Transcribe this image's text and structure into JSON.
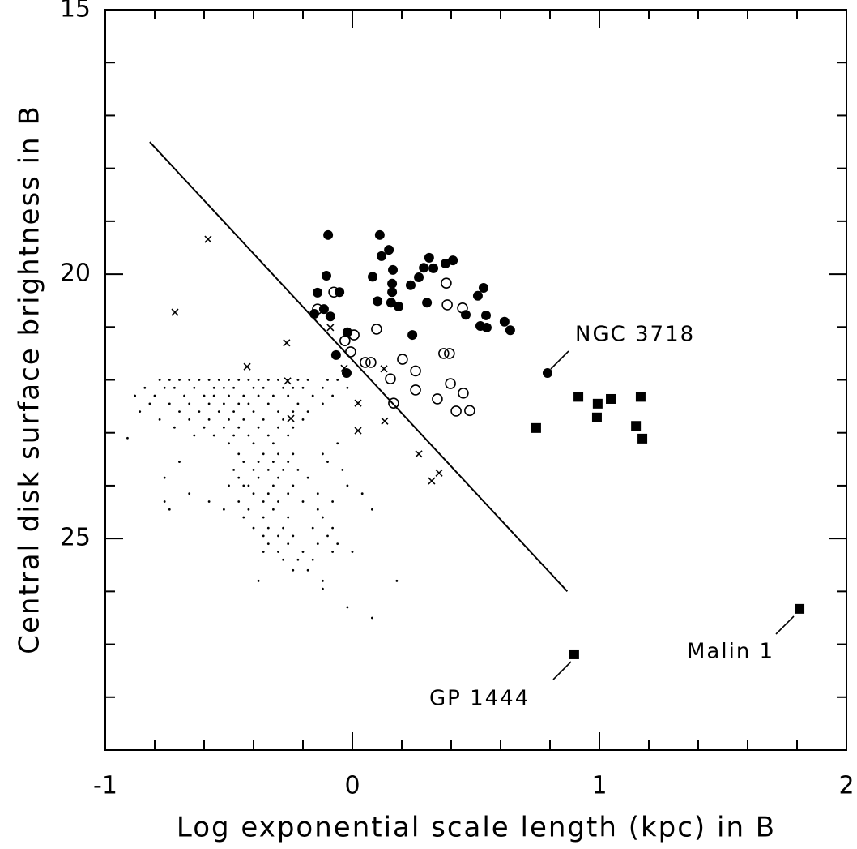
{
  "chart_data": {
    "type": "scatter",
    "xlabel": "Log exponential scale length (kpc) in B",
    "ylabel": "Central disk surface brightness in B",
    "xlim": [
      -1,
      2
    ],
    "ylim": [
      15,
      29
    ],
    "y_inverted": true,
    "xticks": [
      -1,
      0,
      1,
      2
    ],
    "yticks": [
      15,
      20,
      25
    ],
    "xminor_ticks": [
      -0.8,
      -0.6,
      -0.4,
      -0.2,
      0.2,
      0.4,
      0.6,
      0.8,
      1.2,
      1.4,
      1.6,
      1.8
    ],
    "yminor_ticks": [
      16,
      17,
      18,
      19,
      21,
      22,
      23,
      24,
      26,
      27,
      28
    ],
    "grid": false,
    "fit_line": {
      "x": [
        -0.82,
        0.87
      ],
      "values": [
        17.5,
        26.0
      ],
      "color": "#000000"
    },
    "series": [
      {
        "marker": "filled-circle",
        "color": "#000000",
        "x": [
          -0.098,
          -0.141,
          -0.115,
          -0.154,
          -0.105,
          -0.052,
          -0.089,
          -0.066,
          -0.023,
          -0.02,
          0.082,
          0.102,
          0.111,
          0.118,
          0.148,
          0.164,
          0.161,
          0.161,
          0.157,
          0.187,
          0.236,
          0.243,
          0.269,
          0.289,
          0.302,
          0.311,
          0.328,
          0.377,
          0.407,
          0.508,
          0.531,
          0.459,
          0.518,
          0.541,
          0.544,
          0.616,
          0.639,
          0.79
        ],
        "values": [
          19.26,
          20.35,
          20.66,
          20.75,
          20.03,
          20.34,
          20.8,
          21.53,
          21.87,
          21.1,
          20.05,
          20.51,
          19.26,
          19.66,
          19.54,
          19.92,
          20.18,
          20.34,
          20.54,
          20.61,
          20.21,
          21.15,
          20.06,
          19.88,
          20.54,
          19.69,
          19.89,
          19.8,
          19.74,
          20.41,
          20.26,
          20.77,
          20.98,
          20.78,
          21.01,
          20.9,
          21.06,
          21.87
        ]
      },
      {
        "marker": "open-circle",
        "color": "#000000",
        "x": [
          -0.141,
          -0.075,
          0.007,
          -0.03,
          -0.007,
          0.052,
          0.075,
          0.098,
          0.203,
          0.154,
          0.256,
          0.167,
          0.256,
          0.38,
          0.384,
          0.37,
          0.393,
          0.446,
          0.397,
          0.344,
          0.449,
          0.42,
          0.475
        ],
        "values": [
          20.66,
          20.34,
          21.15,
          21.26,
          21.47,
          21.67,
          21.67,
          21.04,
          21.61,
          21.98,
          21.83,
          22.44,
          22.19,
          20.17,
          20.58,
          21.5,
          21.5,
          20.64,
          22.07,
          22.36,
          22.25,
          22.59,
          22.58
        ]
      },
      {
        "marker": "cross",
        "color": "#000000",
        "x": [
          -0.584,
          -0.718,
          -0.266,
          -0.426,
          -0.262,
          -0.249,
          -0.089,
          -0.033,
          0.023,
          0.023,
          0.128,
          0.131,
          0.269,
          0.321,
          0.351
        ],
        "values": [
          19.34,
          20.72,
          21.3,
          21.75,
          22.02,
          22.73,
          21.01,
          21.78,
          22.44,
          22.96,
          21.79,
          22.78,
          23.4,
          23.91,
          23.76
        ]
      },
      {
        "marker": "square",
        "color": "#000000",
        "x": [
          0.744,
          0.915,
          0.993,
          0.99,
          1.046,
          1.167,
          1.148,
          1.174,
          0.898,
          1.81
        ],
        "values": [
          22.91,
          22.32,
          22.45,
          22.71,
          22.36,
          22.32,
          22.87,
          23.11,
          27.19,
          26.33
        ]
      },
      {
        "marker": "dot",
        "color": "#000000",
        "x": [
          -0.78,
          -0.74,
          -0.7,
          -0.66,
          -0.62,
          -0.58,
          -0.54,
          -0.5,
          -0.46,
          -0.42,
          -0.38,
          -0.34,
          -0.3,
          -0.26,
          -0.22,
          -0.18,
          -0.1,
          -0.06,
          -0.84,
          -0.76,
          -0.72,
          -0.64,
          -0.56,
          -0.52,
          -0.48,
          -0.4,
          -0.36,
          -0.28,
          -0.24,
          -0.2,
          -0.12,
          -0.02,
          -0.88,
          -0.8,
          -0.68,
          -0.6,
          -0.56,
          -0.5,
          -0.44,
          -0.38,
          -0.32,
          -0.26,
          -0.16,
          -0.08,
          -0.82,
          -0.74,
          -0.66,
          -0.58,
          -0.52,
          -0.46,
          -0.42,
          -0.34,
          -0.22,
          -0.12,
          -0.86,
          -0.7,
          -0.62,
          -0.54,
          -0.48,
          -0.4,
          -0.3,
          -0.24,
          -0.18,
          -0.78,
          -0.66,
          -0.58,
          -0.5,
          -0.44,
          -0.36,
          -0.28,
          -0.2,
          -0.72,
          -0.6,
          -0.52,
          -0.46,
          -0.38,
          -0.3,
          -0.24,
          -0.64,
          -0.56,
          -0.48,
          -0.42,
          -0.34,
          -0.26,
          -0.91,
          -0.5,
          -0.4,
          -0.32,
          -0.06,
          -0.46,
          -0.36,
          -0.3,
          -0.24,
          -0.12,
          -0.7,
          -0.44,
          -0.38,
          -0.32,
          -0.26,
          -0.1,
          -0.48,
          -0.4,
          -0.34,
          -0.28,
          -0.22,
          -0.04,
          -0.76,
          -0.46,
          -0.38,
          -0.3,
          -0.18,
          -0.5,
          -0.44,
          -0.42,
          -0.32,
          -0.24,
          -0.02,
          -0.66,
          -0.4,
          -0.34,
          -0.26,
          -0.14,
          0.04,
          -0.76,
          -0.58,
          -0.46,
          -0.36,
          -0.3,
          -0.2,
          -0.08,
          -0.74,
          -0.52,
          -0.42,
          -0.32,
          -0.14,
          0.08,
          -0.44,
          -0.36,
          -0.26,
          -0.12,
          -0.4,
          -0.34,
          -0.28,
          -0.16,
          -0.08,
          -0.36,
          -0.3,
          -0.24,
          -0.1,
          -0.34,
          -0.26,
          -0.14,
          -0.06,
          -0.36,
          -0.3,
          -0.2,
          -0.08,
          0.0,
          -0.28,
          -0.22,
          -0.16,
          -0.24,
          -0.18,
          -0.38,
          -0.12,
          0.18,
          -0.12,
          -0.02,
          0.08
        ],
        "values": [
          22.0,
          22.0,
          22.0,
          22.0,
          22.0,
          22.0,
          22.0,
          22.0,
          22.0,
          22.0,
          22.0,
          22.0,
          22.0,
          22.0,
          22.0,
          22.0,
          22.0,
          22.0,
          22.15,
          22.15,
          22.15,
          22.15,
          22.15,
          22.15,
          22.15,
          22.15,
          22.15,
          22.15,
          22.15,
          22.15,
          22.15,
          22.15,
          22.3,
          22.3,
          22.3,
          22.3,
          22.3,
          22.3,
          22.3,
          22.3,
          22.3,
          22.3,
          22.3,
          22.3,
          22.45,
          22.45,
          22.45,
          22.45,
          22.45,
          22.45,
          22.45,
          22.45,
          22.45,
          22.45,
          22.6,
          22.6,
          22.6,
          22.6,
          22.6,
          22.6,
          22.6,
          22.6,
          22.6,
          22.75,
          22.75,
          22.75,
          22.75,
          22.75,
          22.75,
          22.75,
          22.75,
          22.9,
          22.9,
          22.9,
          22.9,
          22.9,
          22.9,
          22.9,
          23.05,
          23.05,
          23.05,
          23.05,
          23.05,
          23.05,
          23.1,
          23.2,
          23.2,
          23.2,
          23.2,
          23.4,
          23.4,
          23.4,
          23.4,
          23.4,
          23.55,
          23.55,
          23.55,
          23.55,
          23.55,
          23.55,
          23.7,
          23.7,
          23.7,
          23.7,
          23.7,
          23.7,
          23.85,
          23.85,
          23.85,
          23.85,
          23.85,
          24.0,
          24.0,
          24.0,
          24.0,
          24.0,
          24.0,
          24.15,
          24.15,
          24.15,
          24.15,
          24.15,
          24.15,
          24.3,
          24.3,
          24.3,
          24.3,
          24.3,
          24.3,
          24.3,
          24.45,
          24.45,
          24.45,
          24.45,
          24.45,
          24.45,
          24.6,
          24.6,
          24.6,
          24.6,
          24.8,
          24.8,
          24.8,
          24.8,
          24.8,
          24.95,
          24.95,
          24.95,
          24.95,
          25.1,
          25.1,
          25.1,
          25.1,
          25.25,
          25.25,
          25.25,
          25.25,
          25.25,
          25.4,
          25.4,
          25.4,
          25.6,
          25.6,
          25.8,
          25.8,
          25.8,
          25.95,
          26.3,
          26.5
        ]
      }
    ],
    "annotations": [
      "NGC 3718",
      "GP 1444",
      "Malin 1"
    ]
  }
}
